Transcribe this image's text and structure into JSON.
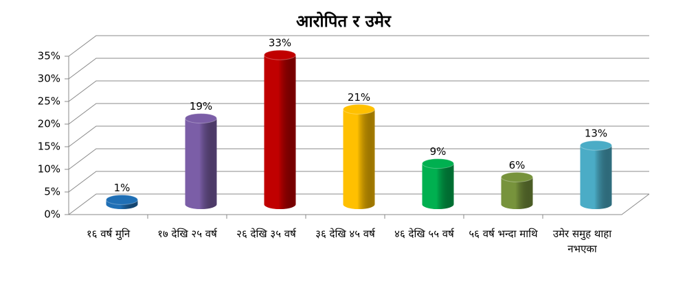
{
  "chart_data": {
    "type": "bar3d",
    "title": "आरोपित र उमेर",
    "categories": [
      "१६ वर्ष मुनि",
      "१७ देखि २५ वर्ष",
      "२६ देखि ३५ वर्ष",
      "३६ देखि ४५ वर्ष",
      "४६ देखि ५५ वर्ष",
      "५६ वर्ष भन्दा माथि",
      "उमेर समुह थाहा नभएका"
    ],
    "values": [
      1,
      19,
      33,
      21,
      9,
      6,
      13
    ],
    "value_labels": [
      "1%",
      "19%",
      "33%",
      "21%",
      "9%",
      "6%",
      "13%"
    ],
    "colors": [
      "#1f6fb5",
      "#7b5ea7",
      "#c00000",
      "#ffc000",
      "#00b050",
      "#77933c",
      "#4bacc6"
    ],
    "ylim": [
      0,
      35
    ],
    "yticks": [
      {
        "value": 0,
        "label": "0%"
      },
      {
        "value": 5,
        "label": "5%"
      },
      {
        "value": 10,
        "label": "10%"
      },
      {
        "value": 15,
        "label": "15%"
      },
      {
        "value": 20,
        "label": "20%"
      },
      {
        "value": 25,
        "label": "25%"
      },
      {
        "value": 30,
        "label": "30%"
      },
      {
        "value": 35,
        "label": "35%"
      }
    ],
    "grid": true
  }
}
